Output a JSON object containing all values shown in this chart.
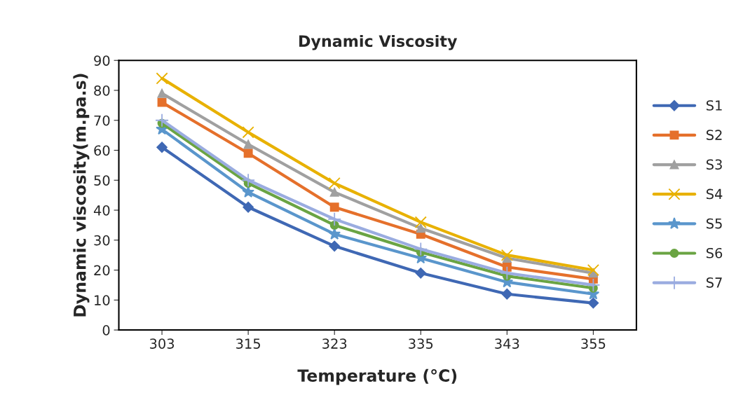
{
  "chart_data": {
    "type": "line",
    "title": "Dynamic Viscosity",
    "xlabel": "Temperature (°C)",
    "ylabel": "Dynamic viscosity(m.pa.s)",
    "categories": [
      "303",
      "315",
      "323",
      "335",
      "343",
      "355"
    ],
    "ylim": [
      0,
      90
    ],
    "yticks": [
      0,
      10,
      20,
      30,
      40,
      50,
      60,
      70,
      80,
      90
    ],
    "grid": false,
    "legend": "right",
    "series": [
      {
        "name": "S1",
        "color": "#3f68b4",
        "marker": "diamond",
        "values": [
          61,
          41,
          28,
          19,
          12,
          9
        ]
      },
      {
        "name": "S2",
        "color": "#e5702b",
        "marker": "square",
        "values": [
          76,
          59,
          41,
          32,
          21,
          17
        ]
      },
      {
        "name": "S3",
        "color": "#a0a0a0",
        "marker": "triangle",
        "values": [
          79,
          62,
          46,
          34,
          24,
          19
        ]
      },
      {
        "name": "S4",
        "color": "#e8b100",
        "marker": "cross",
        "values": [
          84,
          66,
          49,
          36,
          25,
          20
        ]
      },
      {
        "name": "S5",
        "color": "#5a96cc",
        "marker": "star",
        "values": [
          67,
          46,
          32,
          24,
          16,
          12
        ]
      },
      {
        "name": "S6",
        "color": "#6aa443",
        "marker": "circle",
        "values": [
          69,
          49,
          35,
          26,
          18,
          14
        ]
      },
      {
        "name": "S7",
        "color": "#9aace0",
        "marker": "plus",
        "values": [
          70,
          50,
          37,
          27,
          19,
          15
        ]
      }
    ]
  }
}
